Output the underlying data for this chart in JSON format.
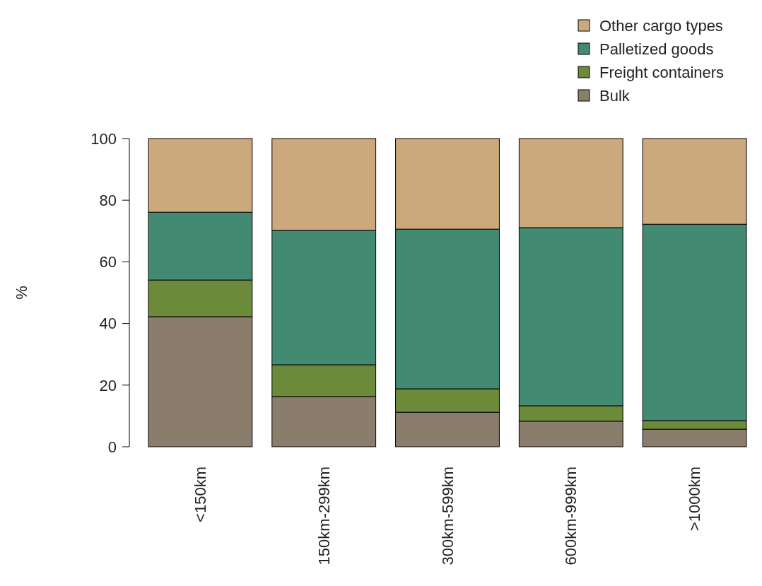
{
  "chart_data": {
    "type": "bar",
    "stacked": true,
    "ylabel": "%",
    "categories": [
      "<150km",
      "150km-299km",
      "300km-599km",
      "600km-999km",
      ">1000km"
    ],
    "series": [
      {
        "name": "Bulk",
        "color": "#8b7d6b",
        "values": [
          42.2,
          16.3,
          11.2,
          8.3,
          5.7
        ]
      },
      {
        "name": "Freight containers",
        "color": "#6b8a3a",
        "values": [
          11.9,
          10.3,
          7.6,
          5.0,
          2.8
        ]
      },
      {
        "name": "Palletized goods",
        "color": "#438a73",
        "values": [
          22.0,
          43.6,
          51.8,
          57.8,
          63.7
        ]
      },
      {
        "name": "Other cargo types",
        "color": "#cba97c",
        "values": [
          23.9,
          29.8,
          29.4,
          28.9,
          27.8
        ]
      }
    ],
    "ylim": [
      0,
      100
    ],
    "yticks": [
      0,
      20,
      40,
      60,
      80,
      100
    ],
    "legend": "top right"
  }
}
